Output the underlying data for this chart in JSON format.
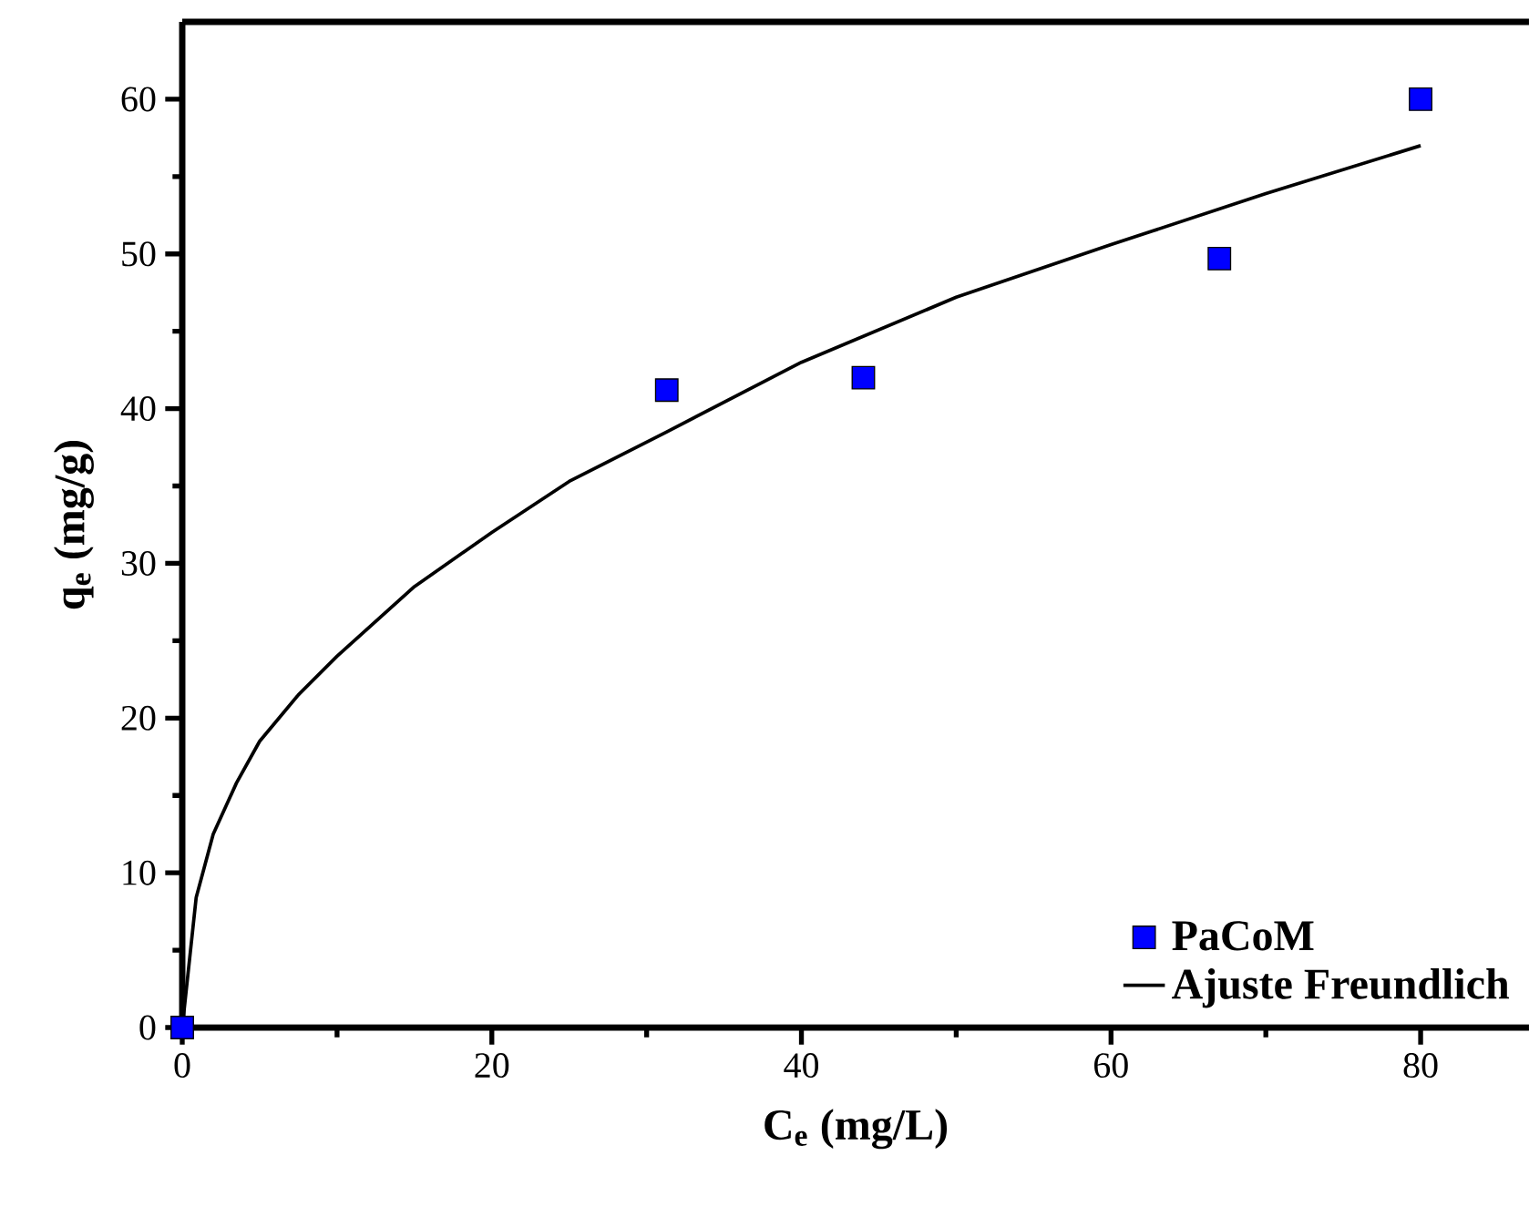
{
  "chart_data": {
    "type": "scatter",
    "xlabel": "C$_{e}$ (mg/L)",
    "ylabel": "q$_{e}$ (mg/g)",
    "xlim": [
      0,
      87
    ],
    "ylim": [
      0,
      65
    ],
    "xticks": [
      0,
      20,
      40,
      60,
      80
    ],
    "yticks": [
      0,
      10,
      20,
      30,
      40,
      50,
      60
    ],
    "grid": false,
    "legend": "bottom right",
    "series": [
      {
        "name": "PaCoM",
        "type": "scatter",
        "marker": "square",
        "color": "#0000ff",
        "x": [
          0,
          31.3,
          44,
          67,
          80
        ],
        "values": [
          0,
          41.2,
          42,
          49.7,
          60
        ]
      },
      {
        "name": "Ajuste Freundlich",
        "type": "line",
        "marker": "none",
        "line_style": "solid",
        "color": "#000000",
        "x": [
          0,
          0.9,
          2,
          3.5,
          5,
          7.5,
          10,
          15,
          20,
          25,
          31.3,
          40,
          50,
          60,
          70,
          80
        ],
        "values": [
          0,
          8.4,
          12.5,
          15.8,
          18.5,
          21.5,
          24,
          28.5,
          32,
          35.3,
          38.5,
          43,
          47.2,
          50.6,
          53.9,
          57
        ]
      }
    ]
  }
}
